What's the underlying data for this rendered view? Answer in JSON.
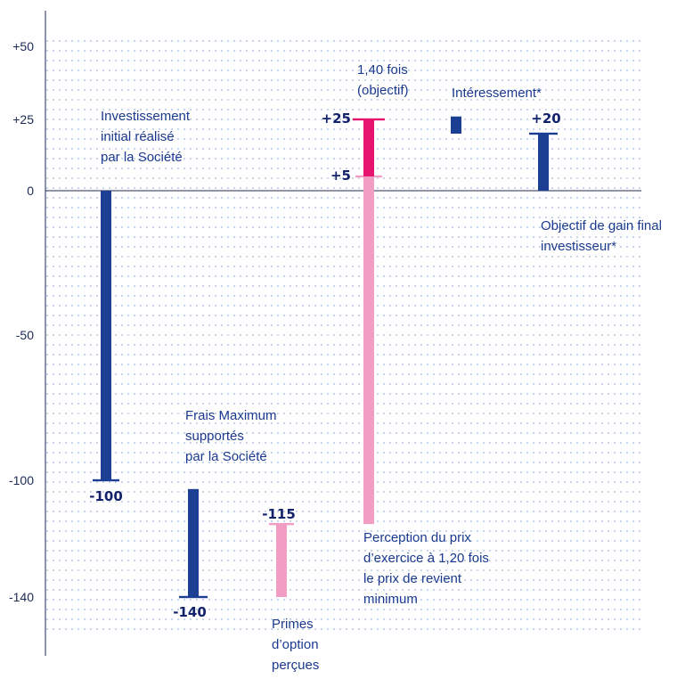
{
  "colors": {
    "navy": "#1c3f94",
    "magenta": "#e6136f",
    "pink": "#f29ec4",
    "dots": "#c7d5ea",
    "axis": "#1b2a55",
    "text": "#1b3a8f"
  },
  "chart_data": {
    "type": "bar",
    "subtype": "floating-range",
    "ylim": [
      -160,
      62
    ],
    "y_ticks": [
      {
        "value": 50,
        "label": "+50"
      },
      {
        "value": 25,
        "label": "+25"
      },
      {
        "value": 0,
        "label": "0"
      },
      {
        "value": -50,
        "label": "-50"
      },
      {
        "value": -100,
        "label": "-100"
      },
      {
        "value": -140,
        "label": "-140"
      }
    ],
    "grid": "dotted-horizontal",
    "bars": [
      {
        "id": "investissement",
        "from": 0,
        "to": -100,
        "color": "navy",
        "value_label": "-100",
        "annotation": [
          "Investissement",
          "initial réalisé",
          "par la Société"
        ]
      },
      {
        "id": "frais",
        "from": -103,
        "to": -140,
        "color": "navy",
        "value_label": "-140",
        "annotation": [
          "Frais Maximum",
          "supportés",
          "par la Société"
        ]
      },
      {
        "id": "primes",
        "from": -115,
        "to": -140,
        "color": "pink",
        "value_label": "-115",
        "annotation": [
          "Primes",
          "d’option",
          "perçues"
        ]
      },
      {
        "id": "perception",
        "from": 5,
        "to": -115,
        "color": "pink",
        "value_label": "+5",
        "annotation": [
          "Perception du prix",
          "d’exercice à 1,20 fois",
          "le prix de revient",
          "minimum"
        ]
      },
      {
        "id": "objectif-140",
        "from": 25,
        "to": 5,
        "color": "magenta",
        "value_label": "+25",
        "annotation": [
          "1,40 fois",
          "(objectif)"
        ]
      },
      {
        "id": "interessement",
        "from": 26,
        "to": 20,
        "color": "navy",
        "value_label": "",
        "annotation": [
          "Intéressement*"
        ]
      },
      {
        "id": "gain-final",
        "from": 20,
        "to": 0,
        "color": "navy",
        "value_label": "+20",
        "annotation": [
          "Objectif de gain final",
          "investisseur*"
        ]
      }
    ]
  }
}
